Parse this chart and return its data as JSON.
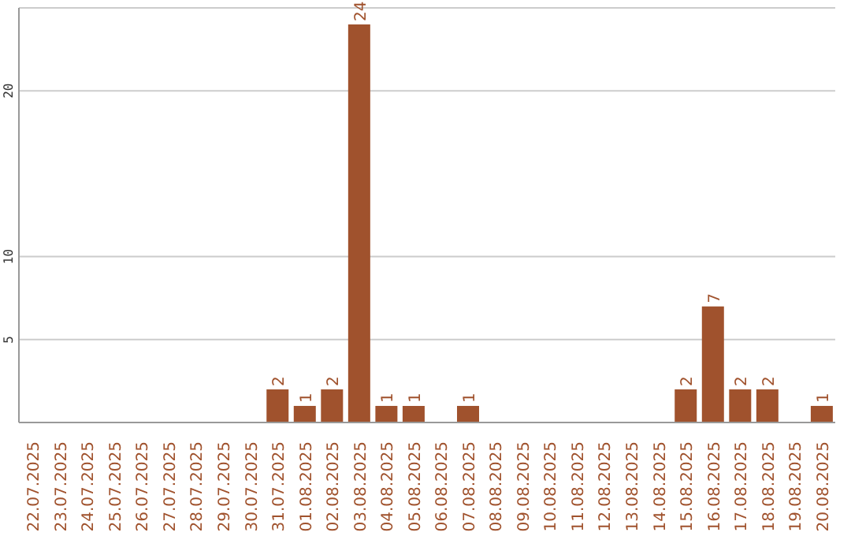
{
  "chart_data": {
    "type": "bar",
    "categories": [
      "22.07.2025",
      "23.07.2025",
      "24.07.2025",
      "25.07.2025",
      "26.07.2025",
      "27.07.2025",
      "28.07.2025",
      "29.07.2025",
      "30.07.2025",
      "31.07.2025",
      "01.08.2025",
      "02.08.2025",
      "03.08.2025",
      "04.08.2025",
      "05.08.2025",
      "06.08.2025",
      "07.08.2025",
      "08.08.2025",
      "09.08.2025",
      "10.08.2025",
      "11.08.2025",
      "12.08.2025",
      "13.08.2025",
      "14.08.2025",
      "15.08.2025",
      "16.08.2025",
      "17.08.2025",
      "18.08.2025",
      "19.08.2025",
      "20.08.2025"
    ],
    "values": [
      0,
      0,
      0,
      0,
      0,
      0,
      0,
      0,
      0,
      2,
      1,
      2,
      24,
      1,
      1,
      0,
      1,
      0,
      0,
      0,
      0,
      0,
      0,
      0,
      2,
      7,
      2,
      2,
      0,
      1
    ],
    "value_labels": [
      null,
      null,
      null,
      null,
      null,
      null,
      null,
      null,
      null,
      "2",
      "1",
      "2",
      "24",
      "1",
      "1",
      null,
      "1",
      null,
      null,
      null,
      null,
      null,
      null,
      null,
      "2",
      "7",
      "2",
      "2",
      null,
      "1"
    ],
    "color": "#a0522d",
    "ylim": [
      0,
      25
    ],
    "yticks": [
      5,
      10,
      20
    ],
    "grid": "y"
  }
}
